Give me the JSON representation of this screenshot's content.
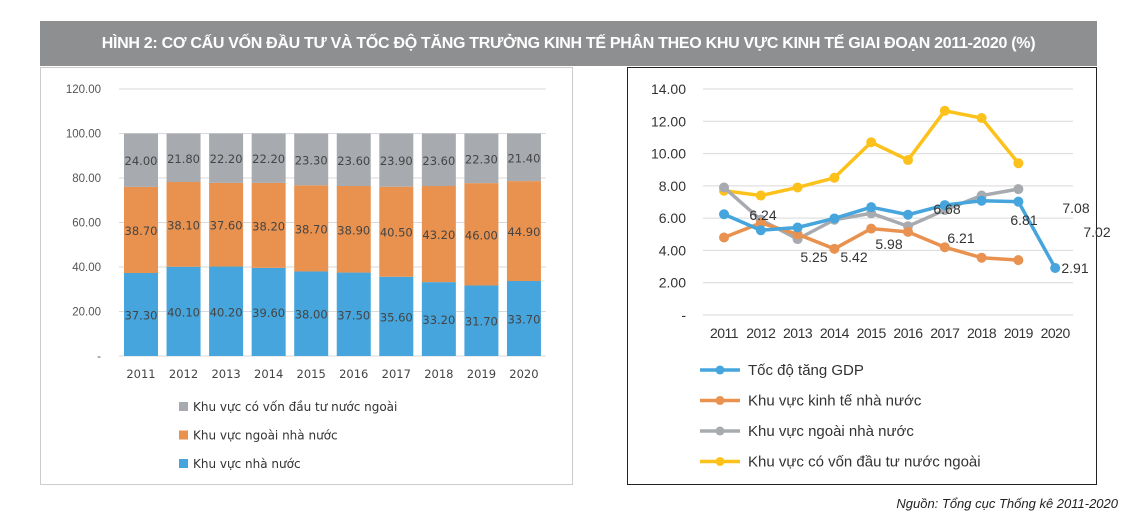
{
  "title": "HÌNH 2: CƠ CẤU VỐN ĐẦU TƯ VÀ TỐC ĐỘ TĂNG TRƯỞNG KINH TẾ PHÂN THEO KHU VỰC KINH TẾ GIAI ĐOẠN 2011-2020 (%)",
  "source": "Nguồn: Tổng cục Thống kê 2011-2020",
  "chart_data": [
    {
      "type": "bar",
      "stacked": true,
      "categories": [
        "2011",
        "2012",
        "2013",
        "2014",
        "2015",
        "2016",
        "2017",
        "2018",
        "2019",
        "2020"
      ],
      "ylim": [
        0,
        120
      ],
      "yticks": [
        "-",
        "20.00",
        "40.00",
        "60.00",
        "80.00",
        "100.00",
        "120.00"
      ],
      "grid": true,
      "legend_position": "bottom",
      "series": [
        {
          "name": "Khu vực nhà nước",
          "color": "#45a5dc",
          "values": [
            37.3,
            40.1,
            40.2,
            39.6,
            38.0,
            37.5,
            35.6,
            33.2,
            31.7,
            33.7
          ],
          "labels": [
            "37.30",
            "40.10",
            "40.20",
            "39.60",
            "38.00",
            "37.50",
            "35.60",
            "33.20",
            "31.70",
            "33.70"
          ]
        },
        {
          "name": "Khu vực ngoài nhà nước",
          "color": "#e9924f",
          "values": [
            38.7,
            38.1,
            37.6,
            38.2,
            38.7,
            38.9,
            40.5,
            43.2,
            46.0,
            44.9
          ],
          "labels": [
            "38.70",
            "38.10",
            "37.60",
            "38.20",
            "38.70",
            "38.90",
            "40.50",
            "43.20",
            "46.00",
            "44.90"
          ]
        },
        {
          "name": "Khu vực có vốn đầu tư nước ngoài",
          "color": "#a7abb0",
          "values": [
            24.0,
            21.8,
            22.2,
            22.2,
            23.3,
            23.6,
            23.9,
            23.6,
            22.3,
            21.4
          ],
          "labels": [
            "24.00",
            "21.80",
            "22.20",
            "22.20",
            "23.30",
            "23.60",
            "23.90",
            "23.60",
            "22.30",
            "21.40"
          ]
        }
      ],
      "legend_order": [
        2,
        1,
        0
      ]
    },
    {
      "type": "line",
      "categories": [
        "2011",
        "2012",
        "2013",
        "2014",
        "2015",
        "2016",
        "2017",
        "2018",
        "2019",
        "2020"
      ],
      "ylim": [
        0,
        14
      ],
      "yticks": [
        "-",
        "2.00",
        "4.00",
        "6.00",
        "8.00",
        "10.00",
        "12.00",
        "14.00"
      ],
      "grid": true,
      "legend_position": "bottom",
      "series": [
        {
          "name": "Tốc độ tăng GDP",
          "color": "#45a5dc",
          "values": [
            6.24,
            5.25,
            5.42,
            5.98,
            6.68,
            6.21,
            6.81,
            7.08,
            7.02,
            2.91
          ],
          "labels": [
            "6.24",
            "5.25",
            "5.42",
            "5.98",
            "6.68",
            "6.21",
            "6.81",
            "7.08",
            "7.02",
            "2.91"
          ]
        },
        {
          "name": "Khu vực kinh tế nhà nước",
          "color": "#e9924f",
          "values": [
            4.8,
            5.7,
            5.0,
            4.1,
            5.35,
            5.15,
            4.2,
            3.55,
            3.4,
            null
          ]
        },
        {
          "name": "Khu vực ngoài nhà nước",
          "color": "#a7abb0",
          "values": [
            7.9,
            5.9,
            4.7,
            5.9,
            6.3,
            5.5,
            6.5,
            7.4,
            7.8,
            null
          ]
        },
        {
          "name": "Khu vực có vốn đầu tư nước ngoài",
          "color": "#fcc21b",
          "values": [
            7.7,
            7.4,
            7.9,
            8.5,
            10.7,
            9.6,
            12.65,
            12.2,
            9.4,
            null
          ]
        }
      ]
    }
  ]
}
